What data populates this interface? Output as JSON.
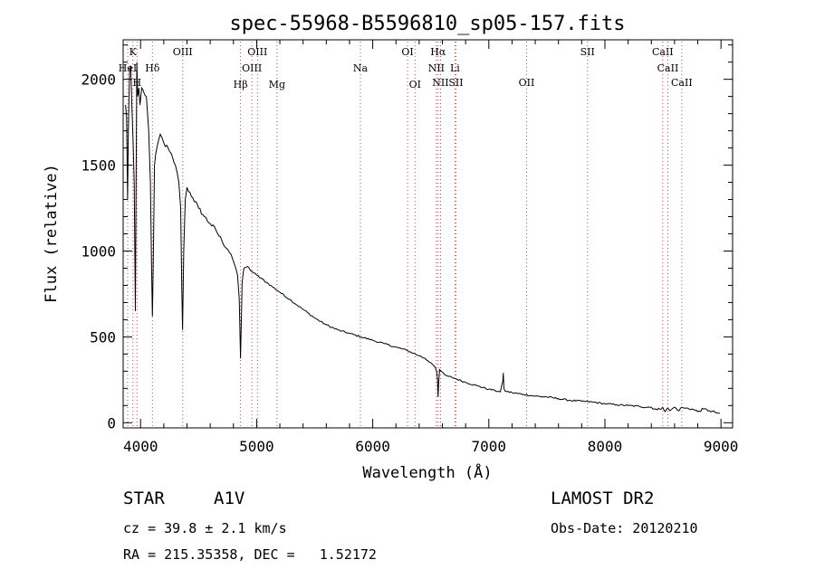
{
  "chart_data": {
    "type": "line",
    "title": "spec-55968-B5596810_sp05-157.fits",
    "xlabel": "Wavelength (Å)",
    "ylabel": "Flux (relative)",
    "xlim": [
      3850,
      9100
    ],
    "ylim": [
      -30,
      2230
    ],
    "xticks": [
      4000,
      5000,
      6000,
      7000,
      8000,
      9000
    ],
    "yticks": [
      0,
      500,
      1000,
      1500,
      2000
    ],
    "grid": false,
    "series": [
      {
        "name": "flux",
        "x": [
          3870,
          3880,
          3888,
          3895,
          3905,
          3915,
          3925,
          3935,
          3945,
          3955,
          3962,
          3968,
          3975,
          3985,
          3995,
          4010,
          4030,
          4050,
          4070,
          4085,
          4095,
          4102,
          4110,
          4120,
          4140,
          4170,
          4200,
          4250,
          4300,
          4330,
          4345,
          4355,
          4362,
          4372,
          4385,
          4400,
          4450,
          4500,
          4550,
          4600,
          4650,
          4700,
          4750,
          4780,
          4810,
          4835,
          4850,
          4857,
          4861,
          4866,
          4875,
          4890,
          4920,
          4960,
          5000,
          5100,
          5200,
          5300,
          5400,
          5500,
          5600,
          5700,
          5800,
          5900,
          6000,
          6100,
          6200,
          6300,
          6350,
          6400,
          6450,
          6500,
          6530,
          6550,
          6558,
          6563,
          6568,
          6576,
          6590,
          6620,
          6650,
          6700,
          6800,
          6900,
          7000,
          7050,
          7100,
          7120,
          7125,
          7130,
          7140,
          7200,
          7300,
          7400,
          7500,
          7600,
          7700,
          7800,
          7900,
          8000,
          8100,
          8200,
          8300,
          8400,
          8450,
          8498,
          8520,
          8542,
          8560,
          8600,
          8640,
          8662,
          8690,
          8750,
          8800,
          8850,
          8900,
          8950,
          8990
        ],
        "y": [
          1850,
          1780,
          1300,
          1720,
          2050,
          2080,
          1850,
          1650,
          1400,
          650,
          1500,
          2100,
          1900,
          1950,
          1850,
          1950,
          1920,
          1900,
          1700,
          1400,
          900,
          620,
          950,
          1500,
          1600,
          1680,
          1630,
          1580,
          1500,
          1400,
          1250,
          800,
          540,
          1000,
          1300,
          1370,
          1310,
          1250,
          1200,
          1160,
          1120,
          1060,
          1010,
          980,
          920,
          860,
          720,
          500,
          375,
          520,
          820,
          900,
          910,
          880,
          860,
          810,
          760,
          710,
          660,
          610,
          570,
          540,
          520,
          500,
          480,
          460,
          440,
          420,
          405,
          390,
          375,
          350,
          330,
          300,
          250,
          150,
          230,
          310,
          300,
          280,
          270,
          260,
          235,
          215,
          195,
          188,
          180,
          240,
          290,
          200,
          185,
          175,
          165,
          155,
          150,
          140,
          130,
          125,
          120,
          110,
          105,
          100,
          95,
          90,
          75,
          90,
          65,
          85,
          70,
          90,
          70,
          90,
          85,
          80,
          65,
          80,
          70,
          60,
          55
        ]
      }
    ],
    "lines": [
      {
        "label": "K",
        "wave": 3934,
        "row": 0
      },
      {
        "label": "HeI",
        "wave": 3889,
        "row": 1
      },
      {
        "label": "H",
        "wave": 3969,
        "row": 2
      },
      {
        "label": "Hδ",
        "wave": 4102,
        "row": 1
      },
      {
        "label": "OIII",
        "wave": 4363,
        "row": 0
      },
      {
        "label": "Hβ",
        "wave": 4861,
        "row": 3
      },
      {
        "label": "OIII",
        "wave": 4959,
        "row": 1
      },
      {
        "label": "OIII",
        "wave": 5007,
        "row": 0
      },
      {
        "label": "Mg",
        "wave": 5175,
        "row": 3
      },
      {
        "label": "Na",
        "wave": 5894,
        "row": 1
      },
      {
        "label": "OI",
        "wave": 6300,
        "row": 0
      },
      {
        "label": "OI",
        "wave": 6364,
        "row": 3
      },
      {
        "label": "Hα",
        "wave": 6563,
        "row": 0
      },
      {
        "label": "NII",
        "wave": 6548,
        "row": 1
      },
      {
        "label": "NII",
        "wave": 6584,
        "row": 2
      },
      {
        "label": "SII",
        "wave": 6717,
        "row": 2
      },
      {
        "label": "Li",
        "wave": 6708,
        "row": 1
      },
      {
        "label": "OII",
        "wave": 7325,
        "row": 2
      },
      {
        "label": "SII",
        "wave": 7850,
        "row": 0
      },
      {
        "label": "CaII",
        "wave": 8498,
        "row": 0
      },
      {
        "label": "CaII",
        "wave": 8542,
        "row": 1
      },
      {
        "label": "CaII",
        "wave": 8662,
        "row": 2
      }
    ]
  },
  "info": {
    "class_label": "STAR",
    "subclass": "A1V",
    "cz": "cz = 39.8 ± 2.1 km/s",
    "coords": "RA = 215.35358, DEC =   1.52172",
    "survey": "LAMOST DR2",
    "obs_date": "Obs-Date: 20120210"
  }
}
